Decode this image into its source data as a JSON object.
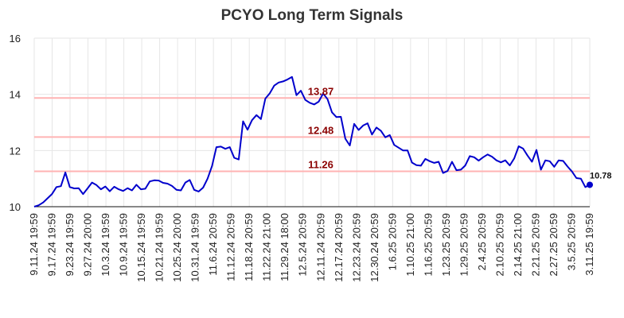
{
  "chart_data": {
    "type": "line",
    "title": "PCYO Long Term Signals",
    "ylim": [
      10,
      16
    ],
    "yticks": [
      10,
      12,
      14,
      16
    ],
    "grid": true,
    "line_color": "#0000cc",
    "level_color": "#ffb3b3",
    "level_label_color": "#8b0000",
    "levels": [
      {
        "value": 13.87,
        "label": "13.87"
      },
      {
        "value": 12.48,
        "label": "12.48"
      },
      {
        "value": 11.26,
        "label": "11.26"
      }
    ],
    "end_label": "10.78",
    "x_tick_labels": [
      "9.11.24 19:59",
      "9.17.24 19:59",
      "9.23.24 19:59",
      "9.27.24 20:00",
      "10.3.24 19:59",
      "10.9.24 19:59",
      "10.15.24 19:59",
      "10.21.24 19:59",
      "10.25.24 20:00",
      "10.31.24 19:59",
      "11.6.24 20:59",
      "11.12.24 20:59",
      "11.18.24 20:59",
      "11.22.24 21:00",
      "11.29.24 18:00",
      "12.5.24 20:59",
      "12.11.24 20:59",
      "12.17.24 20:59",
      "12.23.24 20:59",
      "12.30.24 20:59",
      "1.6.25 20:59",
      "1.10.25 21:00",
      "1.16.25 20:59",
      "1.23.25 20:59",
      "1.29.25 20:59",
      "2.4.25 20:59",
      "2.10.25 20:59",
      "2.14.25 21:00",
      "2.21.25 20:59",
      "2.27.25 20:59",
      "3.5.25 20:59",
      "3.11.25 19:59"
    ],
    "series": [
      {
        "values": [
          10.0,
          10.05,
          10.15,
          10.3,
          10.45,
          10.7,
          10.73,
          11.22,
          10.7,
          10.65,
          10.66,
          10.45,
          10.65,
          10.86,
          10.77,
          10.62,
          10.72,
          10.55,
          10.71,
          10.62,
          10.56,
          10.66,
          10.58,
          10.78,
          10.62,
          10.64,
          10.9,
          10.94,
          10.93,
          10.85,
          10.82,
          10.74,
          10.6,
          10.58,
          10.86,
          10.95,
          10.6,
          10.54,
          10.68,
          11.0,
          11.45,
          12.12,
          12.14,
          12.06,
          12.12,
          11.74,
          11.68,
          13.04,
          12.74,
          13.08,
          13.26,
          13.12,
          13.85,
          14.04,
          14.31,
          14.42,
          14.46,
          14.53,
          14.62,
          13.97,
          14.13,
          13.8,
          13.7,
          13.64,
          13.74,
          14.03,
          13.83,
          13.36,
          13.19,
          13.2,
          12.42,
          12.18,
          12.95,
          12.73,
          12.89,
          12.97,
          12.57,
          12.82,
          12.7,
          12.47,
          12.55,
          12.2,
          12.1,
          12.0,
          12.0,
          11.57,
          11.48,
          11.46,
          11.7,
          11.62,
          11.56,
          11.6,
          11.2,
          11.27,
          11.6,
          11.3,
          11.32,
          11.47,
          11.8,
          11.76,
          11.64,
          11.76,
          11.86,
          11.78,
          11.65,
          11.58,
          11.65,
          11.47,
          11.72,
          12.15,
          12.07,
          11.82,
          11.6,
          12.02,
          11.32,
          11.65,
          11.62,
          11.42,
          11.65,
          11.63,
          11.43,
          11.25,
          11.02,
          11.0,
          10.7,
          10.78
        ]
      }
    ]
  }
}
